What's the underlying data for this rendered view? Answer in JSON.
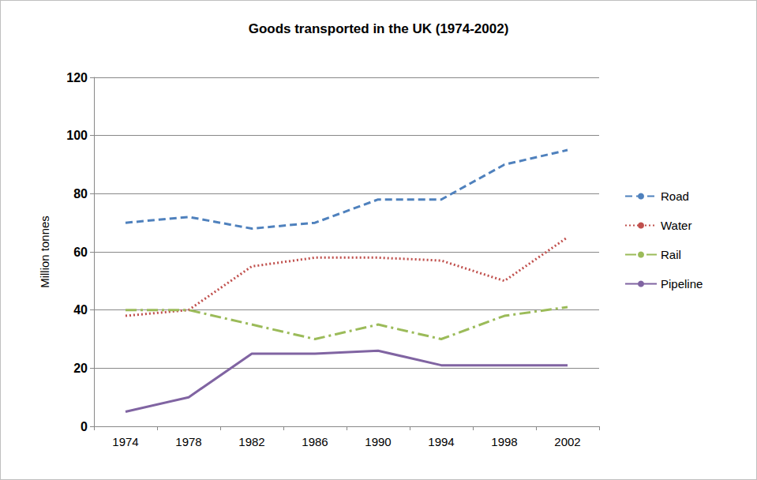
{
  "chart_data": {
    "type": "line",
    "title": "Goods transported in the UK (1974-2002)",
    "y_label": "Million tonnes",
    "categories": [
      "1974",
      "1978",
      "1982",
      "1986",
      "1990",
      "1994",
      "1998",
      "2002"
    ],
    "series": [
      {
        "name": "Road",
        "color": "#4f81bd",
        "line_style": "dashed",
        "values": [
          70,
          72,
          68,
          70,
          78,
          78,
          90,
          95
        ]
      },
      {
        "name": "Water",
        "color": "#c0504d",
        "line_style": "dotted",
        "values": [
          38,
          40,
          55,
          58,
          58,
          57,
          50,
          65
        ]
      },
      {
        "name": "Rail",
        "color": "#9bbb59",
        "line_style": "dashdot",
        "values": [
          40,
          40,
          35,
          30,
          35,
          30,
          38,
          41
        ]
      },
      {
        "name": "Pipeline",
        "color": "#8064a2",
        "line_style": "solid",
        "values": [
          5,
          10,
          25,
          25,
          26,
          21,
          21,
          21
        ]
      }
    ],
    "ylim": [
      0,
      120
    ],
    "yticks": [
      0,
      20,
      40,
      60,
      80,
      100,
      120
    ],
    "grid": true,
    "legend": "right"
  }
}
